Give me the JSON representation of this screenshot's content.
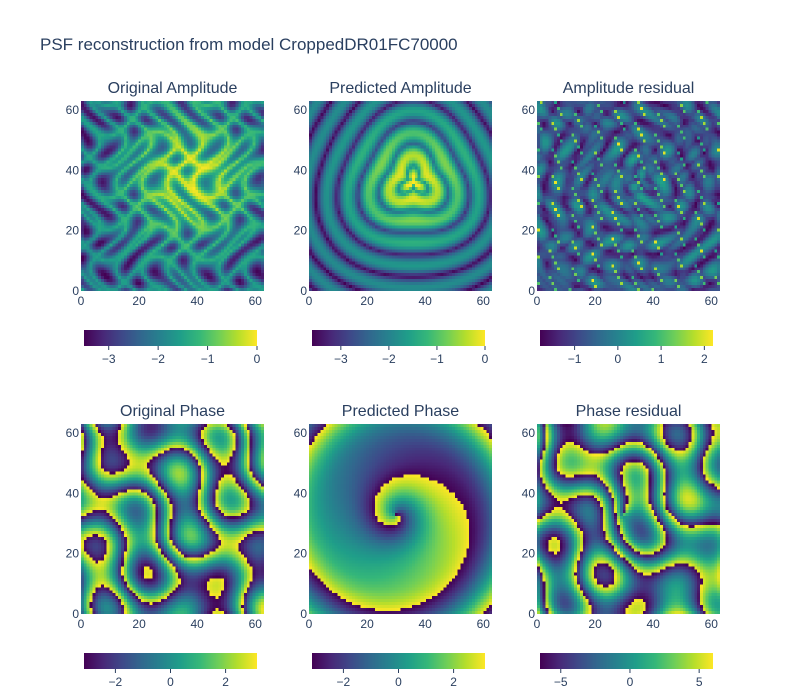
{
  "figure": {
    "title": "PSF reconstruction from model CroppedDR01FC70000"
  },
  "colors": {
    "viridis": [
      "#440154",
      "#482878",
      "#3e4989",
      "#31688e",
      "#26828e",
      "#1f9e89",
      "#35b779",
      "#6ece58",
      "#b5de2b",
      "#fde725"
    ],
    "axis_text": "#2a3f5f",
    "background": "#ffffff"
  },
  "chart_data": [
    {
      "type": "heatmap",
      "title": "Original Amplitude",
      "x_ticks": [
        "0",
        "20",
        "40",
        "60"
      ],
      "y_ticks": [
        "0",
        "20",
        "40",
        "60"
      ],
      "xlim": [
        0,
        63
      ],
      "ylim": [
        0,
        63
      ],
      "colorbar": {
        "range": [
          -3.5,
          0
        ],
        "tick_values": [
          -3,
          -2,
          -1,
          0
        ],
        "tick_labels": [
          "−3",
          "−2",
          "−1",
          "0"
        ]
      }
    },
    {
      "type": "heatmap",
      "title": "Predicted Amplitude",
      "x_ticks": [
        "0",
        "20",
        "40",
        "60"
      ],
      "y_ticks": [
        "0",
        "20",
        "40",
        "60"
      ],
      "xlim": [
        0,
        63
      ],
      "ylim": [
        0,
        63
      ],
      "colorbar": {
        "range": [
          -3.6,
          0
        ],
        "tick_values": [
          -3,
          -2,
          -1,
          0
        ],
        "tick_labels": [
          "−3",
          "−2",
          "−1",
          "0"
        ]
      }
    },
    {
      "type": "heatmap",
      "title": "Amplitude residual",
      "x_ticks": [
        "0",
        "20",
        "40",
        "60"
      ],
      "y_ticks": [
        "0",
        "20",
        "40",
        "60"
      ],
      "xlim": [
        0,
        63
      ],
      "ylim": [
        0,
        63
      ],
      "colorbar": {
        "range": [
          -1.8,
          2.2
        ],
        "tick_values": [
          -1,
          0,
          1,
          2
        ],
        "tick_labels": [
          "−1",
          "0",
          "1",
          "2"
        ]
      }
    },
    {
      "type": "heatmap",
      "title": "Original Phase",
      "x_ticks": [
        "0",
        "20",
        "40",
        "60"
      ],
      "y_ticks": [
        "0",
        "20",
        "40",
        "60"
      ],
      "xlim": [
        0,
        63
      ],
      "ylim": [
        0,
        63
      ],
      "colorbar": {
        "range": [
          -3.14,
          3.14
        ],
        "tick_values": [
          -2,
          0,
          2
        ],
        "tick_labels": [
          "−2",
          "0",
          "2"
        ]
      }
    },
    {
      "type": "heatmap",
      "title": "Predicted Phase",
      "x_ticks": [
        "0",
        "20",
        "40",
        "60"
      ],
      "y_ticks": [
        "0",
        "20",
        "40",
        "60"
      ],
      "xlim": [
        0,
        63
      ],
      "ylim": [
        0,
        63
      ],
      "colorbar": {
        "range": [
          -3.14,
          3.14
        ],
        "tick_values": [
          -2,
          0,
          2
        ],
        "tick_labels": [
          "−2",
          "0",
          "2"
        ]
      }
    },
    {
      "type": "heatmap",
      "title": "Phase residual",
      "x_ticks": [
        "0",
        "20",
        "40",
        "60"
      ],
      "y_ticks": [
        "0",
        "20",
        "40",
        "60"
      ],
      "xlim": [
        0,
        63
      ],
      "ylim": [
        0,
        63
      ],
      "colorbar": {
        "range": [
          -6.5,
          6
        ],
        "tick_values": [
          -5,
          0,
          5
        ],
        "tick_labels": [
          "−5",
          "0",
          "5"
        ]
      }
    }
  ]
}
